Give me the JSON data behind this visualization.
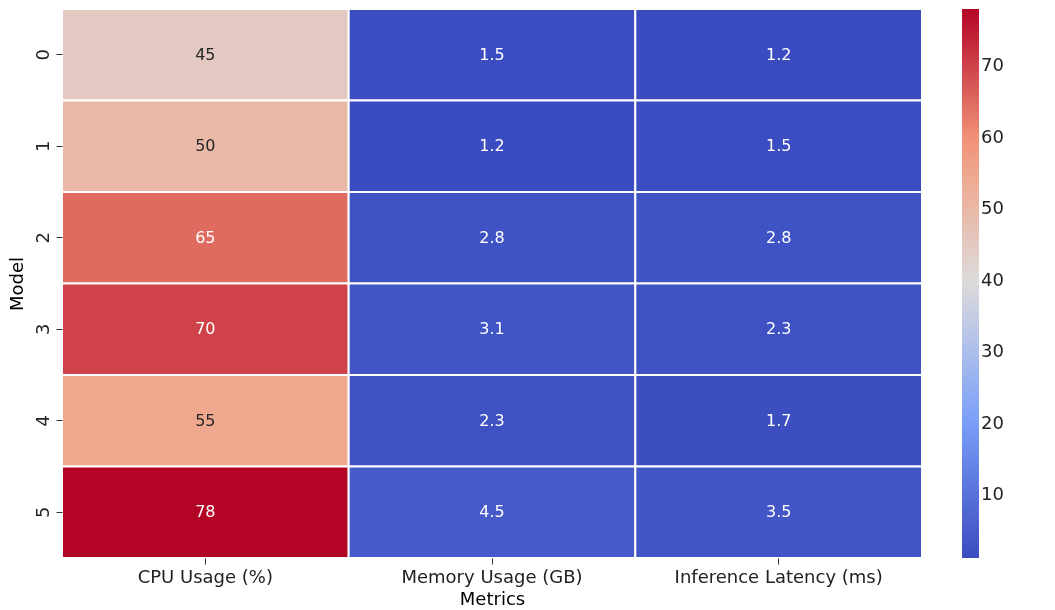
{
  "chart_data": {
    "type": "heatmap",
    "xlabel": "Metrics",
    "ylabel": "Model",
    "categories": [
      "CPU Usage (%)",
      "Memory Usage (GB)",
      "Inference Latency (ms)"
    ],
    "y_categories": [
      "0",
      "1",
      "2",
      "3",
      "4",
      "5"
    ],
    "cells": [
      [
        45,
        1.5,
        1.2
      ],
      [
        50,
        1.2,
        1.5
      ],
      [
        65,
        2.8,
        2.8
      ],
      [
        70,
        3.1,
        2.3
      ],
      [
        55,
        2.3,
        1.7
      ],
      [
        78,
        4.5,
        3.5
      ]
    ],
    "data_labels": true,
    "clim": [
      1.2,
      78
    ],
    "cticks": [
      10,
      20,
      30,
      40,
      50,
      60,
      70
    ]
  }
}
